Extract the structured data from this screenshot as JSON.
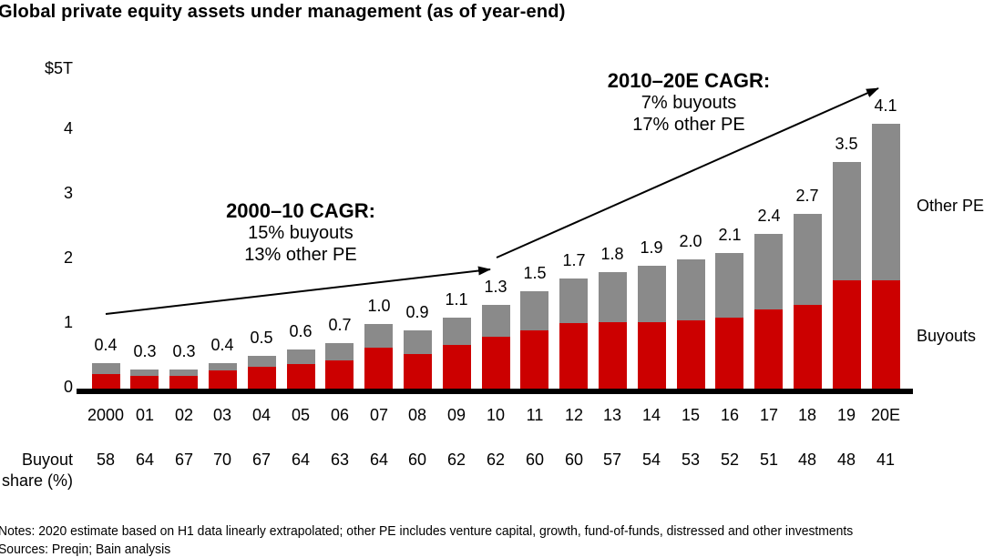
{
  "title": "Global private equity assets under management (as of year-end)",
  "y_axis": {
    "top_label": "$5T",
    "ticks": [
      "4",
      "3",
      "2",
      "1",
      "0"
    ]
  },
  "chart_data": {
    "type": "bar",
    "stacked": true,
    "title": "Global private equity assets under management (as of year-end)",
    "xlabel": "",
    "ylabel": "$5T",
    "ylim": [
      0,
      5
    ],
    "grid": false,
    "categories": [
      "2000",
      "01",
      "02",
      "03",
      "04",
      "05",
      "06",
      "07",
      "08",
      "09",
      "10",
      "11",
      "12",
      "13",
      "14",
      "15",
      "16",
      "17",
      "18",
      "19",
      "20E"
    ],
    "totals": [
      0.4,
      0.3,
      0.3,
      0.4,
      0.5,
      0.6,
      0.7,
      1.0,
      0.9,
      1.1,
      1.3,
      1.5,
      1.7,
      1.8,
      1.9,
      2.0,
      2.1,
      2.4,
      2.7,
      3.5,
      4.1
    ],
    "total_labels": [
      "0.4",
      "0.3",
      "0.3",
      "0.4",
      "0.5",
      "0.6",
      "0.7",
      "1.0",
      "0.9",
      "1.1",
      "1.3",
      "1.5",
      "1.7",
      "1.8",
      "1.9",
      "2.0",
      "2.1",
      "2.4",
      "2.7",
      "3.5",
      "4.1"
    ],
    "buyout_share_pct": [
      58,
      64,
      67,
      70,
      67,
      64,
      63,
      64,
      60,
      62,
      62,
      60,
      60,
      57,
      54,
      53,
      52,
      51,
      48,
      48,
      41
    ],
    "series": [
      {
        "name": "Buyouts",
        "color": "#cc0000",
        "values": [
          0.23,
          0.19,
          0.2,
          0.28,
          0.34,
          0.38,
          0.44,
          0.64,
          0.54,
          0.68,
          0.81,
          0.9,
          1.02,
          1.03,
          1.03,
          1.06,
          1.09,
          1.22,
          1.3,
          1.68,
          1.68
        ]
      },
      {
        "name": "Other PE",
        "color": "#8a8a8a",
        "values": [
          0.17,
          0.11,
          0.1,
          0.12,
          0.17,
          0.22,
          0.26,
          0.36,
          0.36,
          0.42,
          0.49,
          0.6,
          0.68,
          0.77,
          0.87,
          0.94,
          1.01,
          1.18,
          1.4,
          1.82,
          2.42
        ]
      }
    ],
    "legend_position": "right-of-last-bar"
  },
  "annotations": {
    "left": {
      "title": "2000–10 CAGR:",
      "line1": "15% buyouts",
      "line2": "13% other PE"
    },
    "right": {
      "title": "2010–20E CAGR:",
      "line1": "7% buyouts",
      "line2": "17% other PE"
    }
  },
  "series_labels": {
    "other_pe": "Other PE",
    "buyouts": "Buyouts"
  },
  "share_row": {
    "label_line1": "Buyout",
    "label_line2": "share (%)"
  },
  "footer": {
    "notes": "Notes: 2020 estimate based on H1 data linearly extrapolated; other PE includes venture capital, growth, fund-of-funds, distressed and other investments",
    "sources": "Sources: Preqin; Bain analysis"
  },
  "colors": {
    "buyouts": "#cc0000",
    "other_pe": "#8a8a8a",
    "axis": "#000000"
  }
}
